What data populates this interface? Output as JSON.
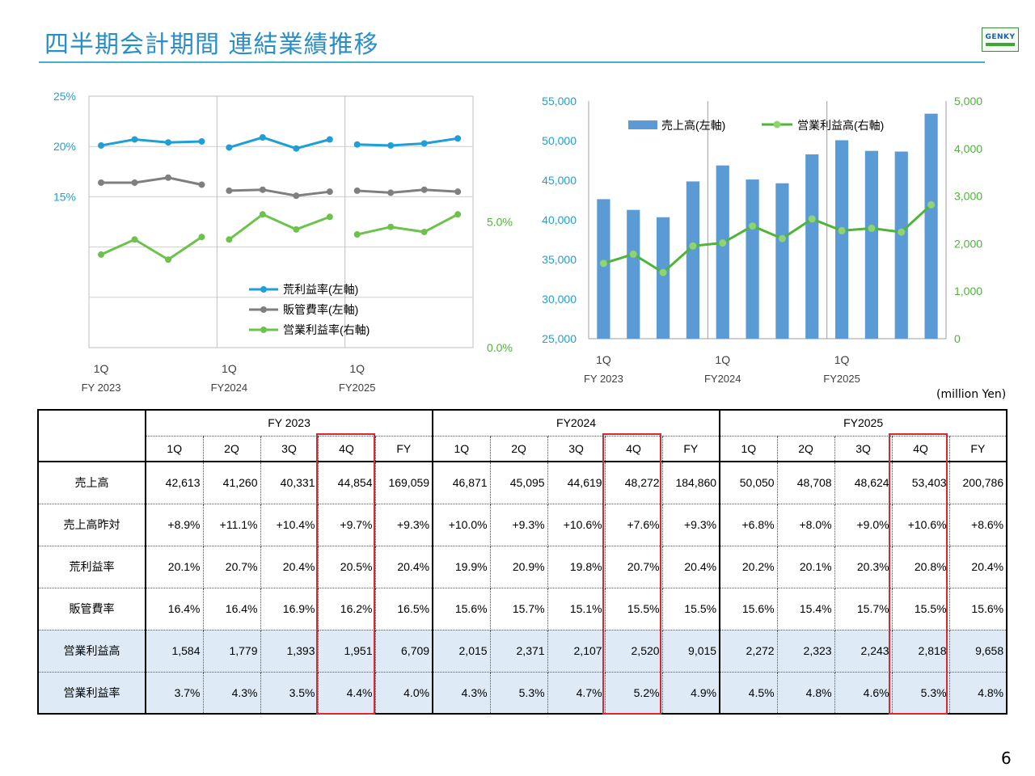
{
  "header": {
    "title": "四半期会計期間 連結業績推移",
    "logo_text": "GENKY",
    "units": "(million Yen)",
    "page_number": "6"
  },
  "colors": {
    "gross_margin": "#1f9fd4",
    "sga_ratio": "#7f7f7f",
    "op_margin": "#6cc24a",
    "sales_bar": "#5b9bd5",
    "op_income_line": "#4fb43a",
    "axis_left_text": "#1f9fd4",
    "axis_right_text": "#4fb43a",
    "highlight": "#d9282e",
    "shade": "#deebf6"
  },
  "chart_data": [
    {
      "type": "line",
      "x_tick_labels": [
        {
          "q": "1Q",
          "fy": "FY 2023"
        },
        {
          "q": "1Q",
          "fy": "FY2024"
        },
        {
          "q": "1Q",
          "fy": "FY2025"
        }
      ],
      "groups": 3,
      "points_per_group": 4,
      "left_axis": {
        "ylim": [
          0,
          25
        ],
        "ticks": [
          15,
          20,
          25
        ],
        "tick_labels": [
          "15%",
          "20%",
          "25%"
        ]
      },
      "right_axis": {
        "ylim": [
          0,
          10
        ],
        "ticks": [
          0,
          5
        ],
        "tick_labels": [
          "0.0%",
          "5.0%"
        ]
      },
      "series": [
        {
          "name": "荒利益率(左軸)",
          "axis": "left",
          "values": [
            20.1,
            20.7,
            20.4,
            20.5,
            19.9,
            20.9,
            19.8,
            20.7,
            20.2,
            20.1,
            20.3,
            20.8
          ]
        },
        {
          "name": "販管費率(左軸)",
          "axis": "left",
          "values": [
            16.4,
            16.4,
            16.9,
            16.2,
            15.6,
            15.7,
            15.1,
            15.5,
            15.6,
            15.4,
            15.7,
            15.5
          ]
        },
        {
          "name": "営業利益率(右軸)",
          "axis": "right",
          "values": [
            3.7,
            4.3,
            3.5,
            4.4,
            4.3,
            5.3,
            4.7,
            5.2,
            4.5,
            4.8,
            4.6,
            5.3
          ]
        }
      ],
      "grid": true,
      "legend": "bottom-center"
    },
    {
      "type": "bar",
      "x_tick_labels": [
        {
          "q": "1Q",
          "fy": "FY 2023"
        },
        {
          "q": "1Q",
          "fy": "FY2024"
        },
        {
          "q": "1Q",
          "fy": "FY2025"
        }
      ],
      "groups": 3,
      "points_per_group": 4,
      "left_axis": {
        "ylim": [
          25000,
          55000
        ],
        "ticks": [
          25000,
          30000,
          35000,
          40000,
          45000,
          50000,
          55000
        ],
        "tick_labels": [
          "25,000",
          "30,000",
          "35,000",
          "40,000",
          "45,000",
          "50,000",
          "55,000"
        ]
      },
      "right_axis": {
        "ylim": [
          0,
          5000
        ],
        "ticks": [
          0,
          1000,
          2000,
          3000,
          4000,
          5000
        ],
        "tick_labels": [
          "0",
          "1,000",
          "2,000",
          "3,000",
          "4,000",
          "5,000"
        ]
      },
      "series": [
        {
          "name": "売上高(左軸)",
          "axis": "left",
          "kind": "bar",
          "values": [
            42613,
            41260,
            40331,
            44854,
            46871,
            45095,
            44619,
            48272,
            50050,
            48708,
            48624,
            53403
          ]
        },
        {
          "name": "営業利益高(右軸)",
          "axis": "right",
          "kind": "line",
          "values": [
            1584,
            1779,
            1393,
            1951,
            2015,
            2371,
            2107,
            2520,
            2272,
            2323,
            2243,
            2818
          ]
        }
      ],
      "grid": false,
      "legend": "top"
    }
  ],
  "table": {
    "years": [
      "FY 2023",
      "FY2024",
      "FY2025"
    ],
    "periods": [
      "1Q",
      "2Q",
      "3Q",
      "4Q",
      "FY"
    ],
    "rows": [
      {
        "label": "売上高",
        "shaded": false,
        "cells": [
          "42,613",
          "41,260",
          "40,331",
          "44,854",
          "169,059",
          "46,871",
          "45,095",
          "44,619",
          "48,272",
          "184,860",
          "50,050",
          "48,708",
          "48,624",
          "53,403",
          "200,786"
        ]
      },
      {
        "label": "売上高昨対",
        "shaded": false,
        "cells": [
          "+8.9%",
          "+11.1%",
          "+10.4%",
          "+9.7%",
          "+9.3%",
          "+10.0%",
          "+9.3%",
          "+10.6%",
          "+7.6%",
          "+9.3%",
          "+6.8%",
          "+8.0%",
          "+9.0%",
          "+10.6%",
          "+8.6%"
        ]
      },
      {
        "label": "荒利益率",
        "shaded": false,
        "cells": [
          "20.1%",
          "20.7%",
          "20.4%",
          "20.5%",
          "20.4%",
          "19.9%",
          "20.9%",
          "19.8%",
          "20.7%",
          "20.4%",
          "20.2%",
          "20.1%",
          "20.3%",
          "20.8%",
          "20.4%"
        ]
      },
      {
        "label": "販管費率",
        "shaded": false,
        "cells": [
          "16.4%",
          "16.4%",
          "16.9%",
          "16.2%",
          "16.5%",
          "15.6%",
          "15.7%",
          "15.1%",
          "15.5%",
          "15.5%",
          "15.6%",
          "15.4%",
          "15.7%",
          "15.5%",
          "15.6%"
        ]
      },
      {
        "label": "営業利益高",
        "shaded": true,
        "cells": [
          "1,584",
          "1,779",
          "1,393",
          "1,951",
          "6,709",
          "2,015",
          "2,371",
          "2,107",
          "2,520",
          "9,015",
          "2,272",
          "2,323",
          "2,243",
          "2,818",
          "9,658"
        ]
      },
      {
        "label": "営業利益率",
        "shaded": true,
        "cells": [
          "3.7%",
          "4.3%",
          "3.5%",
          "4.4%",
          "4.0%",
          "4.3%",
          "5.3%",
          "4.7%",
          "5.2%",
          "4.9%",
          "4.5%",
          "4.8%",
          "4.6%",
          "5.3%",
          "4.8%"
        ]
      }
    ]
  }
}
